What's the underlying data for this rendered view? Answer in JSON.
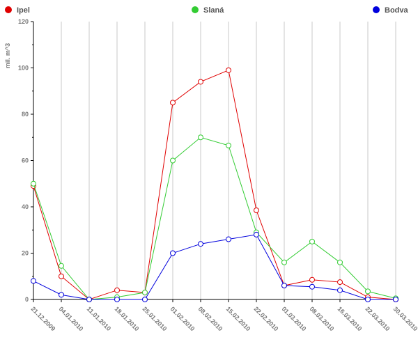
{
  "chart_data": {
    "type": "line",
    "y_label": "mil. m^3",
    "categories": [
      "21.12.2009",
      "04.01.2010",
      "11.01.2010",
      "18.01.2010",
      "25.01.2010",
      "01.02.2010",
      "08.02.2010",
      "15.02.2010",
      "22.02.2010",
      "01.03.2010",
      "08.03.2010",
      "16.03.2010",
      "22.03.2010",
      "30.03.2010"
    ],
    "series": [
      {
        "name": "Ipel",
        "color": "#e00000",
        "values": [
          49,
          10,
          0,
          4,
          3,
          85,
          94,
          99,
          38.5,
          6,
          8.5,
          7.5,
          1,
          0
        ]
      },
      {
        "name": "Slaná",
        "color": "#33cc33",
        "values": [
          50,
          14.5,
          0,
          1,
          3,
          60,
          70,
          66.5,
          29,
          16,
          25,
          16,
          3.5,
          0.5
        ]
      },
      {
        "name": "Bodva",
        "color": "#0000dd",
        "values": [
          8,
          2,
          0,
          0,
          0,
          20,
          24,
          26,
          28,
          6,
          5.5,
          4,
          0,
          0
        ]
      }
    ],
    "ylim": [
      0,
      120
    ],
    "yticks": [
      0,
      20,
      40,
      60,
      80,
      100,
      120
    ],
    "grid": true
  }
}
